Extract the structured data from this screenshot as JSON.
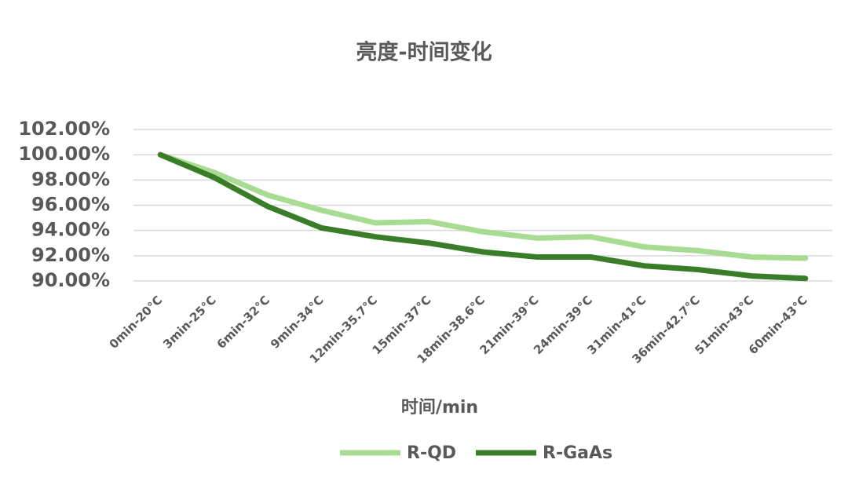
{
  "chart_data": {
    "type": "line",
    "title": "亮度-时间变化",
    "x_label": "时间/min",
    "categories": [
      "0min-20°C",
      "3min-25°C",
      "6min-32°C",
      "9min-34°C",
      "12min-35.7°C",
      "15min-37°C",
      "18min-38.6°C",
      "21min-39°C",
      "24min-39°C",
      "31min-41°C",
      "36min-42.7°C",
      "51min-43°C",
      "60min-43°C"
    ],
    "series": [
      {
        "name": "R-QD",
        "color": "#a9dc93",
        "values": [
          100,
          98.6,
          96.8,
          95.6,
          94.6,
          94.7,
          93.9,
          93.4,
          93.5,
          92.7,
          92.4,
          91.9,
          91.8
        ]
      },
      {
        "name": "R-GaAs",
        "color": "#3a7d28",
        "values": [
          100,
          98.2,
          95.9,
          94.2,
          93.5,
          93.0,
          92.3,
          91.9,
          91.9,
          91.2,
          90.9,
          90.4,
          90.2
        ]
      }
    ],
    "ylim": [
      90,
      102
    ],
    "yticks": [
      {
        "value": 90,
        "label": "90.00%"
      },
      {
        "value": 92,
        "label": "92.00%"
      },
      {
        "value": 94,
        "label": "94.00%"
      },
      {
        "value": 96,
        "label": "96.00%"
      },
      {
        "value": 98,
        "label": "98.00%"
      },
      {
        "value": 100,
        "label": "100.00%"
      },
      {
        "value": 102,
        "label": "102.00%"
      }
    ],
    "grid": true,
    "legend": "bottom"
  }
}
